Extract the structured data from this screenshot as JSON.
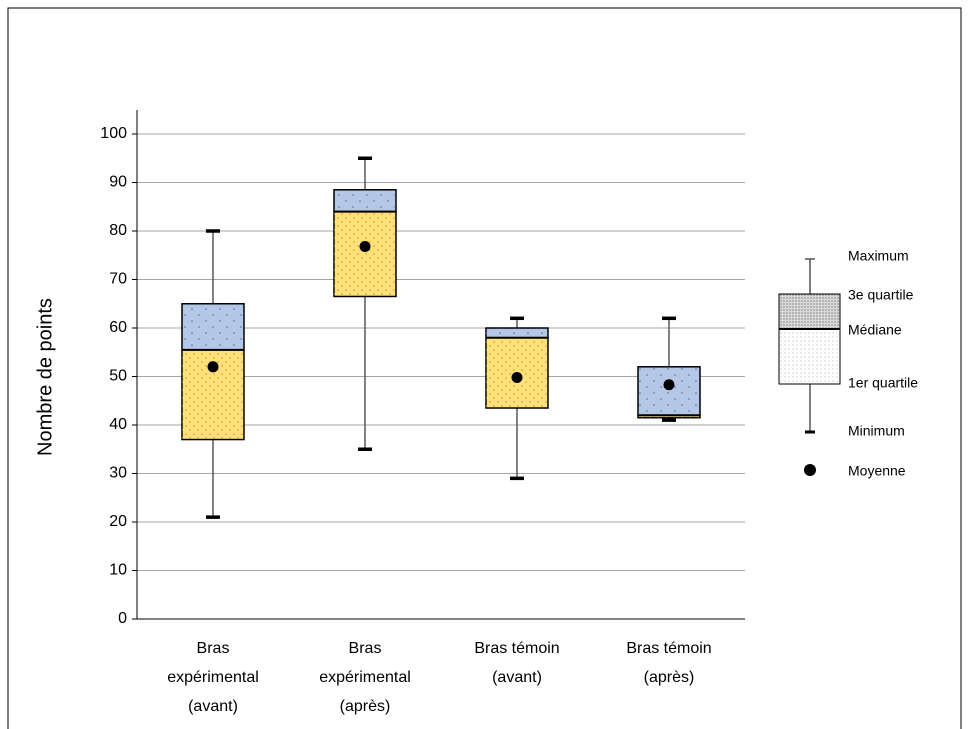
{
  "chart_data": {
    "type": "box",
    "y_label": "Nombre de points",
    "categories": [
      [
        "Bras",
        "expérimental",
        "(avant)"
      ],
      [
        "Bras",
        "expérimental",
        "(après)"
      ],
      [
        "Bras témoin",
        "(avant)"
      ],
      [
        "Bras témoin",
        "(après)"
      ]
    ],
    "min": [
      21,
      35,
      29,
      41
    ],
    "q1": [
      37,
      66.5,
      43.5,
      41.5
    ],
    "median": [
      55.5,
      84,
      58,
      42
    ],
    "q3": [
      65,
      88.5,
      60,
      52
    ],
    "max": [
      80,
      95,
      62,
      62
    ],
    "mean": [
      52,
      76.8,
      49.8,
      48.3
    ],
    "lower_color": "#ffe07a",
    "upper_color": "#b4c7e7",
    "ylim": [
      0,
      100
    ],
    "yticks": [
      0,
      10,
      20,
      30,
      40,
      50,
      60,
      70,
      80,
      90,
      100
    ],
    "grid": true,
    "legend": {
      "maximum": "Maximum",
      "q3": "3e quartile",
      "median": "Médiane",
      "q1": "1er quartile",
      "minimum": "Minimum",
      "mean": "Moyenne"
    }
  }
}
